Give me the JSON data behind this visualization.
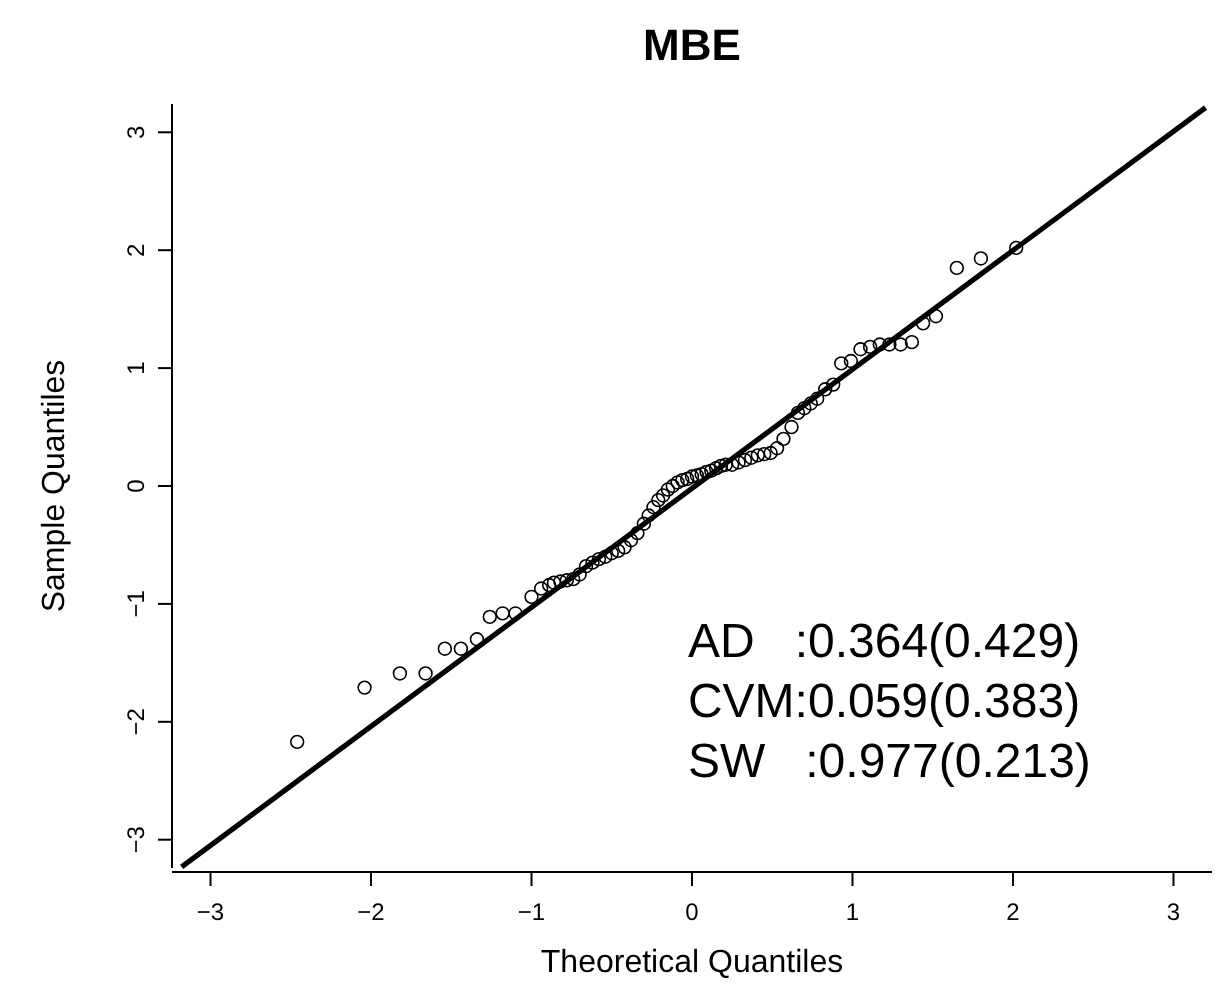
{
  "chart_data": {
    "type": "scatter",
    "title": "MBE",
    "xlabel": "Theoretical Quantiles",
    "ylabel": "Sample Quantiles",
    "xlim": [
      -3.24,
      3.24
    ],
    "ylim": [
      -3.24,
      3.24
    ],
    "xticks": [
      {
        "value": -3,
        "label": "−3"
      },
      {
        "value": -2,
        "label": "−2"
      },
      {
        "value": -1,
        "label": "−1"
      },
      0,
      1,
      2,
      3
    ],
    "yticks": [
      {
        "value": -3,
        "label": "−3"
      },
      {
        "value": -2,
        "label": "−2"
      },
      {
        "value": -1,
        "label": "−1"
      },
      0,
      1,
      2,
      3
    ],
    "grid": false,
    "annotations": [
      "AD   :0.364(0.429)",
      "CVM:0.059(0.383)",
      "SW   :0.977(0.213)"
    ],
    "series": [
      {
        "color": "#000000",
        "marker": "circle",
        "x": [
          -2.46,
          -2.04,
          -1.82,
          -1.66,
          -1.54,
          -1.44,
          -1.34,
          -1.26,
          -1.18,
          -1.1,
          -1.0,
          -0.94,
          -0.89,
          -0.86,
          -0.82,
          -0.78,
          -0.74,
          -0.7,
          -0.66,
          -0.62,
          -0.58,
          -0.54,
          -0.5,
          -0.46,
          -0.42,
          -0.38,
          -0.34,
          -0.3,
          -0.27,
          -0.24,
          -0.21,
          -0.18,
          -0.15,
          -0.12,
          -0.09,
          -0.06,
          -0.03,
          0.0,
          0.03,
          0.06,
          0.09,
          0.12,
          0.15,
          0.18,
          0.21,
          0.25,
          0.29,
          0.33,
          0.37,
          0.41,
          0.45,
          0.49,
          0.53,
          0.57,
          0.62,
          0.66,
          0.7,
          0.74,
          0.78,
          0.83,
          0.88,
          0.93,
          0.99,
          1.05,
          1.11,
          1.17,
          1.23,
          1.3,
          1.37,
          1.44,
          1.52,
          1.65,
          1.8,
          2.02
        ],
        "values": [
          -2.17,
          -1.71,
          -1.59,
          -1.59,
          -1.38,
          -1.38,
          -1.3,
          -1.11,
          -1.08,
          -1.08,
          -0.94,
          -0.87,
          -0.84,
          -0.82,
          -0.81,
          -0.8,
          -0.79,
          -0.75,
          -0.68,
          -0.65,
          -0.62,
          -0.6,
          -0.57,
          -0.55,
          -0.52,
          -0.46,
          -0.4,
          -0.32,
          -0.25,
          -0.18,
          -0.12,
          -0.08,
          -0.03,
          0.0,
          0.03,
          0.05,
          0.06,
          0.08,
          0.09,
          0.1,
          0.12,
          0.13,
          0.15,
          0.17,
          0.18,
          0.18,
          0.2,
          0.22,
          0.24,
          0.26,
          0.27,
          0.28,
          0.32,
          0.4,
          0.5,
          0.62,
          0.66,
          0.7,
          0.74,
          0.82,
          0.86,
          1.04,
          1.06,
          1.16,
          1.18,
          1.2,
          1.2,
          1.2,
          1.22,
          1.38,
          1.44,
          1.85,
          1.93,
          2.02
        ]
      },
      {
        "type": "line",
        "color": "#000000",
        "line_style": "solid",
        "marker": "none",
        "x": [
          -3.18,
          3.2
        ],
        "values": [
          -3.23,
          3.21
        ]
      }
    ]
  }
}
